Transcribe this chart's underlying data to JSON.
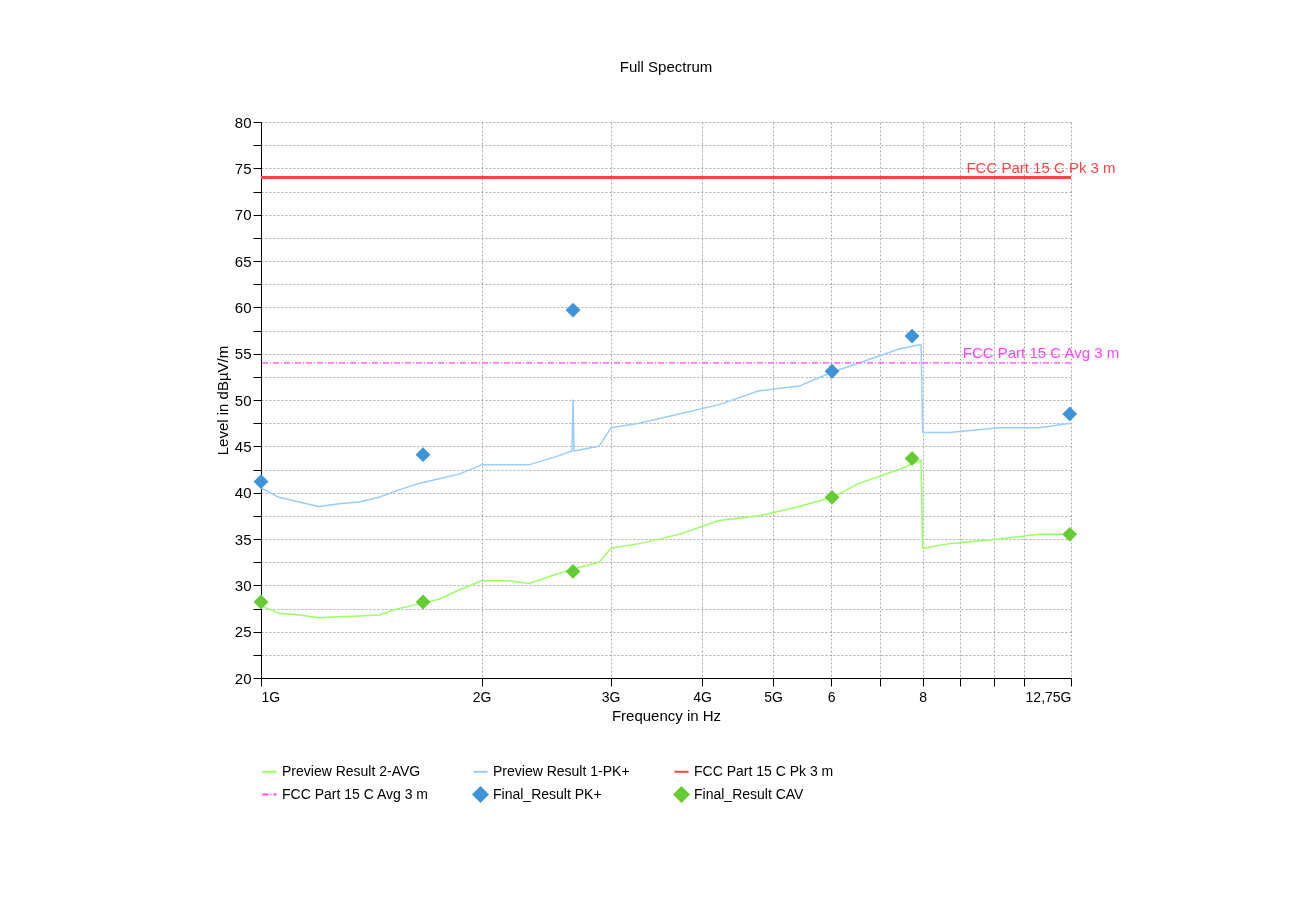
{
  "chart_data": {
    "type": "line",
    "title": "Full Spectrum",
    "xlabel": "Frequency in Hz",
    "ylabel": "Level in dBµV/m",
    "log": "x",
    "grid": true,
    "legend": "bottom",
    "marker": "none",
    "xlim": [
      1,
      12.75
    ],
    "xticks": [
      {
        "value": 1,
        "label": "1G"
      },
      {
        "value": 2,
        "label": "2G"
      },
      {
        "value": 3,
        "label": "3G"
      },
      {
        "value": 4,
        "label": "4G"
      },
      {
        "value": 5,
        "label": "5G"
      },
      6,
      {
        "value": 7,
        "label": null
      },
      8,
      {
        "value": 9,
        "label": null
      },
      {
        "value": 10,
        "label": null
      },
      {
        "value": 11,
        "label": null
      },
      {
        "value": 12.75,
        "label": "12,75G"
      }
    ],
    "ylim": [
      20,
      80
    ],
    "yticks": [
      20,
      {
        "value": 22.5,
        "label": null
      },
      25,
      {
        "value": 27.5,
        "label": null
      },
      30,
      {
        "value": 32.5,
        "label": null
      },
      35,
      {
        "value": 37.5,
        "label": null
      },
      40,
      {
        "value": 42.5,
        "label": null
      },
      45,
      {
        "value": 47.5,
        "label": null
      },
      50,
      {
        "value": 52.5,
        "label": null
      },
      55,
      {
        "value": 57.5,
        "label": null
      },
      60,
      {
        "value": 62.5,
        "label": null
      },
      65,
      {
        "value": 67.5,
        "label": null
      },
      70,
      {
        "value": 72.5,
        "label": null
      },
      75,
      {
        "value": 77.5,
        "label": null
      },
      80
    ],
    "series": [
      {
        "name": "Preview Result 2-AVG",
        "color": "#99ff66",
        "x": [
          1,
          1.058,
          1.127,
          1.2,
          1.278,
          1.361,
          1.449,
          1.543,
          1.643,
          1.75,
          1.863,
          2,
          2.18,
          2.321,
          2.552,
          2.674,
          2.893,
          3.004,
          3.281,
          3.72,
          4.219,
          4.784,
          5.425,
          6.017,
          6.549,
          7.427,
          7.958,
          8,
          8.034,
          8.69,
          10.17,
          11.53,
          12.75
        ],
        "values": [
          27.8,
          27,
          26.8,
          26.5,
          26.6,
          26.7,
          26.8,
          27.5,
          28,
          28.5,
          29.5,
          30.5,
          30.5,
          30.2,
          31.3,
          31.8,
          32.5,
          34,
          34.5,
          35.5,
          37,
          37.5,
          38.5,
          39.5,
          41,
          42.5,
          43.5,
          34,
          34,
          34.5,
          35,
          35.5,
          35.5
        ]
      },
      {
        "name": "Preview Result 1-PK+",
        "color": "#99ccff",
        "x": [
          1,
          1.058,
          1.127,
          1.2,
          1.278,
          1.361,
          1.449,
          1.543,
          1.643,
          1.75,
          1.863,
          2,
          2.18,
          2.321,
          2.552,
          2.657,
          2.666,
          2.674,
          2.893,
          3.004,
          3.281,
          3.72,
          4.219,
          4.784,
          5.425,
          6.017,
          6.549,
          7.427,
          7.958,
          8,
          8.034,
          8.69,
          10.17,
          11.53,
          12.75
        ],
        "values": [
          40.5,
          39.5,
          39,
          38.5,
          38.8,
          39,
          39.5,
          40.3,
          41,
          41.5,
          42,
          43,
          43,
          43,
          44,
          44.5,
          50,
          44.5,
          45,
          47,
          47.5,
          48.5,
          49.5,
          51,
          51.5,
          53,
          54,
          55.5,
          56,
          46.5,
          46.5,
          46.5,
          47,
          47,
          47.5
        ]
      },
      {
        "name": "Final_Result PK+",
        "type": "scatter",
        "marker": "diamond",
        "color": "#3d94d9",
        "x": [
          1,
          1.664,
          2.666,
          6.017,
          7.737,
          12.7
        ],
        "values": [
          41.2,
          44.1,
          59.7,
          53.1,
          56.9,
          48.5
        ]
      },
      {
        "name": "Final_Result CAV",
        "type": "scatter",
        "marker": "diamond",
        "color": "#66cc33",
        "x": [
          1,
          1.664,
          2.666,
          6.017,
          7.737,
          12.7
        ],
        "values": [
          28.2,
          28.2,
          31.5,
          39.5,
          43.7,
          35.5
        ]
      }
    ],
    "ref_lines": [
      {
        "axis": "y",
        "value": 74,
        "label": "FCC Part 15 C Pk 3 m",
        "color": "#ff4444",
        "line_style": "solid"
      },
      {
        "axis": "y",
        "value": 54,
        "label": "FCC Part 15 C Avg 3 m",
        "color": "#ff44ff",
        "line_style": "dashdot"
      }
    ]
  }
}
